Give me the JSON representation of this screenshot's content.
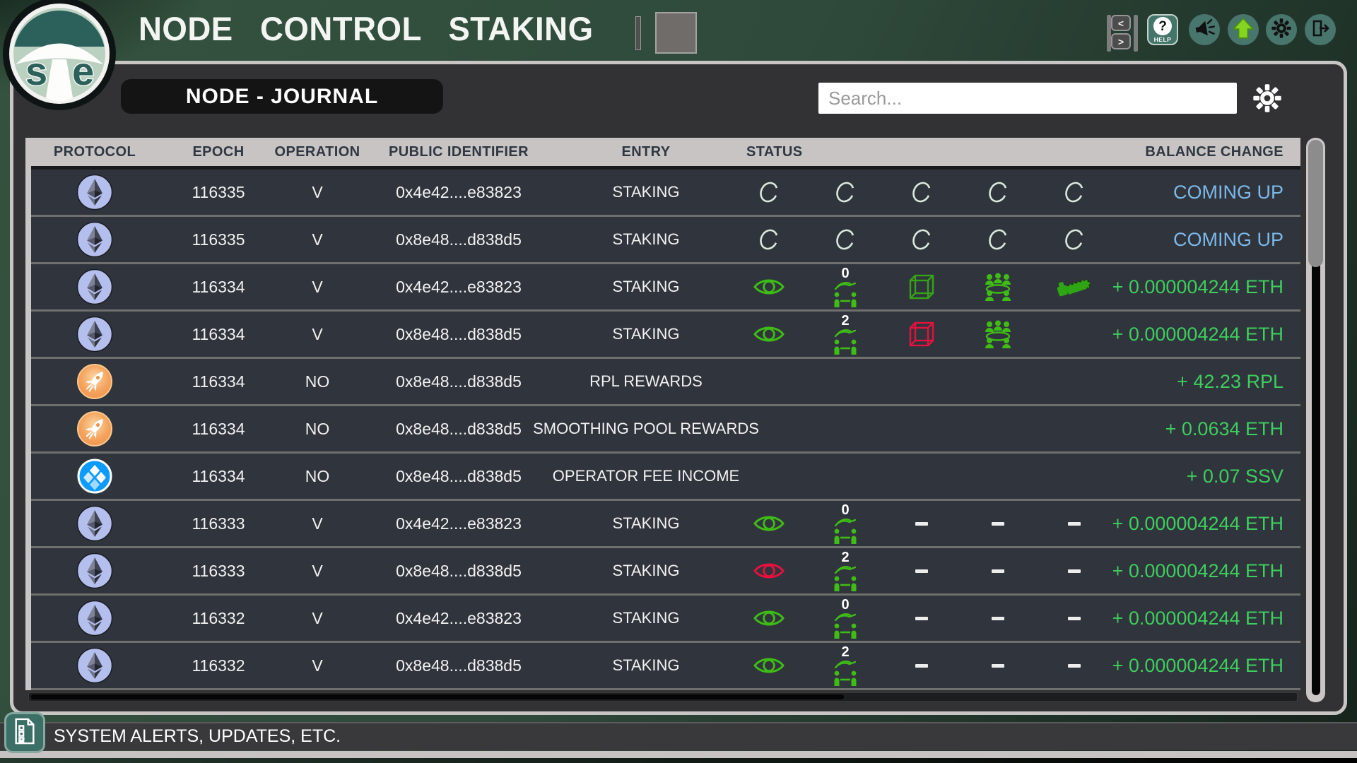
{
  "topbar": {
    "title": "NODE CONTROL STAKING",
    "nav_prev": "<",
    "nav_next": ">",
    "help": {
      "glyph": "?",
      "label": "HELP"
    },
    "icons": [
      "megaphone-icon",
      "update-arrow-icon",
      "gear-icon",
      "logout-icon"
    ]
  },
  "journal": {
    "title": "NODE - JOURNAL",
    "search_placeholder": "Search...",
    "settings_icon": "gear-icon"
  },
  "table": {
    "columns": [
      "PROTOCOL",
      "EPOCH",
      "OPERATION",
      "PUBLIC IDENTIFIER",
      "ENTRY",
      "STATUS",
      "BALANCE CHANGE"
    ],
    "rows": [
      {
        "protocol": "ethereum",
        "epoch": "116335",
        "operation": "V",
        "identifier": "0x4e42....e83823",
        "entry": "STAKING",
        "status": [
          "spinner",
          "spinner",
          "spinner",
          "spinner",
          "spinner"
        ],
        "balance": "COMING UP",
        "balance_kind": "upcoming"
      },
      {
        "protocol": "ethereum",
        "epoch": "116335",
        "operation": "V",
        "identifier": "0x8e48....d838d5",
        "entry": "STAKING",
        "status": [
          "spinner",
          "spinner",
          "spinner",
          "spinner",
          "spinner"
        ],
        "balance": "COMING UP",
        "balance_kind": "upcoming"
      },
      {
        "protocol": "ethereum",
        "epoch": "116334",
        "operation": "V",
        "identifier": "0x4e42....e83823",
        "entry": "STAKING",
        "status": [
          "eye:green",
          "hand:0",
          "cube:green",
          "group",
          "chainsaw"
        ],
        "balance": "+ 0.000004244 ETH",
        "balance_kind": "positive"
      },
      {
        "protocol": "ethereum",
        "epoch": "116334",
        "operation": "V",
        "identifier": "0x8e48....d838d5",
        "entry": "STAKING",
        "status": [
          "eye:green",
          "hand:2",
          "cube:red",
          "group",
          ""
        ],
        "balance": "+ 0.000004244 ETH",
        "balance_kind": "positive"
      },
      {
        "protocol": "rocketpool",
        "epoch": "116334",
        "operation": "NO",
        "identifier": "0x8e48....d838d5",
        "entry": "RPL REWARDS",
        "status": [
          "",
          "",
          "",
          "",
          ""
        ],
        "balance": "+ 42.23 RPL",
        "balance_kind": "positive"
      },
      {
        "protocol": "rocketpool",
        "epoch": "116334",
        "operation": "NO",
        "identifier": "0x8e48....d838d5",
        "entry": "SMOOTHING POOL REWARDS",
        "status": [
          "",
          "",
          "",
          "",
          ""
        ],
        "balance": "+ 0.0634 ETH",
        "balance_kind": "positive"
      },
      {
        "protocol": "ssv",
        "epoch": "116334",
        "operation": "NO",
        "identifier": "0x8e48....d838d5",
        "entry": "OPERATOR FEE INCOME",
        "status": [
          "",
          "",
          "",
          "",
          ""
        ],
        "balance": "+ 0.07 SSV",
        "balance_kind": "positive"
      },
      {
        "protocol": "ethereum",
        "epoch": "116333",
        "operation": "V",
        "identifier": "0x4e42....e83823",
        "entry": "STAKING",
        "status": [
          "eye:green",
          "hand:0",
          "dash",
          "dash",
          "dash"
        ],
        "balance": "+ 0.000004244 ETH",
        "balance_kind": "positive"
      },
      {
        "protocol": "ethereum",
        "epoch": "116333",
        "operation": "V",
        "identifier": "0x8e48....d838d5",
        "entry": "STAKING",
        "status": [
          "eye:red",
          "hand:2",
          "dash",
          "dash",
          "dash"
        ],
        "balance": "+ 0.000004244 ETH",
        "balance_kind": "positive"
      },
      {
        "protocol": "ethereum",
        "epoch": "116332",
        "operation": "V",
        "identifier": "0x4e42....e83823",
        "entry": "STAKING",
        "status": [
          "eye:green",
          "hand:0",
          "dash",
          "dash",
          "dash"
        ],
        "balance": "+ 0.000004244 ETH",
        "balance_kind": "positive"
      },
      {
        "protocol": "ethereum",
        "epoch": "116332",
        "operation": "V",
        "identifier": "0x8e48....d838d5",
        "entry": "STAKING",
        "status": [
          "eye:green",
          "hand:2",
          "dash",
          "dash",
          "dash"
        ],
        "balance": "+ 0.000004244 ETH",
        "balance_kind": "positive"
      }
    ]
  },
  "footer": {
    "alerts_text": "SYSTEM ALERTS, UPDATES, ETC.",
    "icon": "checklist-doc-icon"
  },
  "colors": {
    "positive_green": "#3ecd5e",
    "upcoming_blue": "#7cb9ea",
    "icon_green": "#3fbc16",
    "icon_red": "#e8103f",
    "spinner_ring": "#d9e9dd",
    "accent_teal": "#48756c",
    "header_gray": "#c8c4c3"
  }
}
